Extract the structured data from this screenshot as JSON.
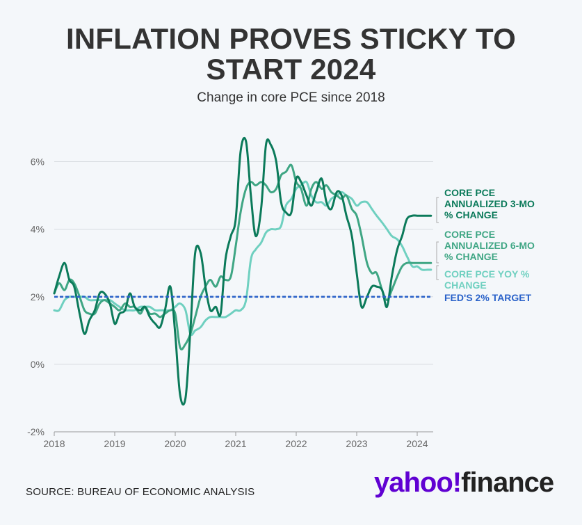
{
  "title_line1": "INFLATION PROVES STICKY TO",
  "title_line2": "START 2024",
  "subtitle": "Change in core PCE since 2018",
  "source": "SOURCE: BUREAU OF ECONOMIC ANALYSIS",
  "logo": {
    "part1": "yahoo",
    "part2": "!",
    "part3": "finance"
  },
  "chart_data": {
    "type": "line",
    "title": "INFLATION PROVES STICKY TO START 2024",
    "subtitle": "Change in core PCE since 2018",
    "ylim": [
      -2,
      7
    ],
    "xlim": [
      2018.0,
      2024.25
    ],
    "yticks": [
      -2,
      0,
      2,
      4,
      6
    ],
    "ytick_labels": [
      "-2%",
      "0%",
      "2%",
      "4%",
      "6%"
    ],
    "xticks": [
      2018,
      2019,
      2020,
      2021,
      2022,
      2023,
      2024
    ],
    "xtick_labels": [
      "2018",
      "2019",
      "2020",
      "2021",
      "2022",
      "2023",
      "2024"
    ],
    "grid": true,
    "legend": "right",
    "series": [
      {
        "name": "CORE PCE ANNUALIZED 3-MO % CHANGE",
        "label_lines": [
          "CORE PCE",
          "ANNUALIZED 3-MO",
          "% CHANGE"
        ],
        "color": "#0b7a5a",
        "x": [
          2018.0,
          2018.08,
          2018.17,
          2018.25,
          2018.33,
          2018.42,
          2018.5,
          2018.58,
          2018.67,
          2018.75,
          2018.83,
          2018.92,
          2019.0,
          2019.08,
          2019.17,
          2019.25,
          2019.33,
          2019.42,
          2019.5,
          2019.58,
          2019.67,
          2019.75,
          2019.83,
          2019.92,
          2020.0,
          2020.08,
          2020.17,
          2020.25,
          2020.33,
          2020.42,
          2020.5,
          2020.58,
          2020.67,
          2020.75,
          2020.83,
          2020.92,
          2021.0,
          2021.08,
          2021.17,
          2021.25,
          2021.33,
          2021.42,
          2021.5,
          2021.58,
          2021.67,
          2021.75,
          2021.83,
          2021.92,
          2022.0,
          2022.08,
          2022.17,
          2022.25,
          2022.33,
          2022.42,
          2022.5,
          2022.58,
          2022.67,
          2022.75,
          2022.83,
          2022.92,
          2023.0,
          2023.08,
          2023.17,
          2023.25,
          2023.33,
          2023.42,
          2023.5,
          2023.58,
          2023.67,
          2023.75,
          2023.83,
          2023.92,
          2024.0,
          2024.08,
          2024.17,
          2024.25
        ],
        "values": [
          2.1,
          2.6,
          3.0,
          2.5,
          2.3,
          1.5,
          0.9,
          1.3,
          1.6,
          2.1,
          2.1,
          1.8,
          1.2,
          1.5,
          1.6,
          2.1,
          1.7,
          1.6,
          1.7,
          1.4,
          1.2,
          1.1,
          1.6,
          2.3,
          0.9,
          -0.9,
          -1.0,
          1.0,
          3.3,
          3.3,
          2.3,
          1.6,
          1.7,
          1.5,
          3.1,
          3.8,
          4.3,
          6.3,
          6.6,
          5.0,
          3.8,
          4.6,
          6.5,
          6.5,
          6.0,
          4.8,
          4.5,
          4.5,
          5.5,
          5.4,
          5.0,
          4.7,
          5.1,
          5.5,
          4.8,
          4.6,
          5.1,
          5.0,
          4.4,
          3.8,
          2.7,
          1.7,
          2.0,
          2.3,
          2.3,
          2.2,
          1.7,
          2.6,
          3.4,
          3.8,
          4.3,
          4.4,
          4.4,
          4.4,
          4.4,
          4.4
        ]
      },
      {
        "name": "CORE PCE ANNUALIZED 6-MO % CHANGE",
        "label_lines": [
          "CORE PCE",
          "ANNUALIZED 6-MO",
          "% CHANGE"
        ],
        "color": "#3fa684",
        "x": [
          2018.0,
          2018.08,
          2018.17,
          2018.25,
          2018.33,
          2018.42,
          2018.5,
          2018.58,
          2018.67,
          2018.75,
          2018.83,
          2018.92,
          2019.0,
          2019.08,
          2019.17,
          2019.25,
          2019.33,
          2019.42,
          2019.5,
          2019.58,
          2019.67,
          2019.75,
          2019.83,
          2019.92,
          2020.0,
          2020.08,
          2020.17,
          2020.25,
          2020.33,
          2020.42,
          2020.5,
          2020.58,
          2020.67,
          2020.75,
          2020.83,
          2020.92,
          2021.0,
          2021.08,
          2021.17,
          2021.25,
          2021.33,
          2021.42,
          2021.5,
          2021.58,
          2021.67,
          2021.75,
          2021.83,
          2021.92,
          2022.0,
          2022.08,
          2022.17,
          2022.25,
          2022.33,
          2022.42,
          2022.5,
          2022.58,
          2022.67,
          2022.75,
          2022.83,
          2022.92,
          2023.0,
          2023.08,
          2023.17,
          2023.25,
          2023.33,
          2023.42,
          2023.5,
          2023.58,
          2023.67,
          2023.75,
          2023.83,
          2023.92,
          2024.0,
          2024.08,
          2024.17,
          2024.25
        ],
        "values": [
          2.1,
          2.4,
          2.2,
          2.5,
          2.4,
          2.0,
          1.6,
          1.5,
          1.5,
          1.8,
          1.9,
          1.8,
          1.7,
          1.6,
          1.8,
          1.7,
          1.7,
          1.5,
          1.7,
          1.5,
          1.5,
          1.4,
          1.5,
          1.6,
          1.5,
          0.5,
          0.6,
          0.9,
          1.4,
          2.0,
          2.3,
          2.5,
          2.3,
          2.6,
          2.5,
          2.6,
          3.5,
          4.5,
          5.2,
          5.4,
          5.3,
          5.4,
          5.3,
          5.1,
          5.2,
          5.6,
          5.7,
          5.9,
          5.4,
          5.2,
          4.7,
          5.2,
          5.4,
          5.2,
          5.3,
          5.1,
          5.0,
          4.9,
          5.0,
          4.6,
          4.4,
          3.8,
          3.0,
          2.7,
          2.7,
          2.2,
          1.9,
          2.2,
          2.6,
          2.9,
          3.0,
          3.0,
          3.0,
          3.0,
          3.0,
          3.0
        ]
      },
      {
        "name": "CORE PCE YOY % CHANGE",
        "label_lines": [
          "CORE PCE YOY %",
          "CHANGE"
        ],
        "color": "#6fd0c0",
        "x": [
          2018.0,
          2018.08,
          2018.17,
          2018.25,
          2018.33,
          2018.42,
          2018.5,
          2018.58,
          2018.67,
          2018.75,
          2018.83,
          2018.92,
          2019.0,
          2019.08,
          2019.17,
          2019.25,
          2019.33,
          2019.42,
          2019.5,
          2019.58,
          2019.67,
          2019.75,
          2019.83,
          2019.92,
          2020.0,
          2020.08,
          2020.17,
          2020.25,
          2020.33,
          2020.42,
          2020.5,
          2020.58,
          2020.67,
          2020.75,
          2020.83,
          2020.92,
          2021.0,
          2021.08,
          2021.17,
          2021.25,
          2021.33,
          2021.42,
          2021.5,
          2021.58,
          2021.67,
          2021.75,
          2021.83,
          2021.92,
          2022.0,
          2022.08,
          2022.17,
          2022.25,
          2022.33,
          2022.42,
          2022.5,
          2022.58,
          2022.67,
          2022.75,
          2022.83,
          2022.92,
          2023.0,
          2023.08,
          2023.17,
          2023.25,
          2023.33,
          2023.42,
          2023.5,
          2023.58,
          2023.67,
          2023.75,
          2023.83,
          2023.92,
          2024.0,
          2024.08,
          2024.17,
          2024.25
        ],
        "values": [
          1.6,
          1.6,
          1.9,
          2.0,
          2.0,
          2.0,
          2.0,
          1.9,
          1.9,
          1.9,
          1.9,
          1.9,
          1.8,
          1.7,
          1.6,
          1.6,
          1.6,
          1.7,
          1.7,
          1.7,
          1.6,
          1.6,
          1.6,
          1.6,
          1.7,
          1.8,
          1.6,
          0.9,
          1.0,
          1.1,
          1.3,
          1.4,
          1.4,
          1.4,
          1.4,
          1.5,
          1.6,
          1.6,
          1.9,
          3.1,
          3.4,
          3.6,
          3.9,
          4.0,
          4.0,
          4.1,
          4.7,
          4.9,
          5.2,
          5.3,
          5.4,
          5.0,
          4.8,
          4.8,
          4.7,
          4.9,
          5.0,
          5.1,
          5.0,
          4.9,
          4.7,
          4.8,
          4.8,
          4.6,
          4.4,
          4.2,
          4.0,
          3.8,
          3.7,
          3.5,
          3.2,
          2.9,
          2.9,
          2.8,
          2.8,
          2.8
        ]
      },
      {
        "name": "FED'S 2% TARGET",
        "label_lines": [
          "FED'S 2% TARGET"
        ],
        "color": "#2a62c9",
        "dashed": true,
        "x": [
          2018.0,
          2024.25
        ],
        "values": [
          2,
          2
        ]
      }
    ]
  }
}
